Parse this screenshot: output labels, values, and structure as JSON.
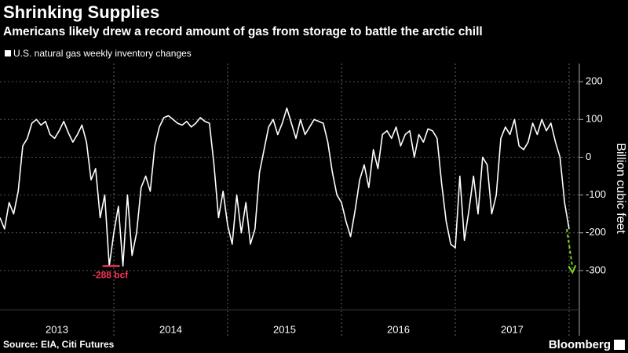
{
  "chart_data": {
    "type": "line",
    "title": "Shrinking Supplies",
    "subtitle": "Americans likely drew a record amount of gas from storage to battle the arctic chill",
    "y_label": "Billion cubic feet",
    "source": "Source: EIA, Citi Futures",
    "brand": "Bloomberg",
    "categories": [
      "2013",
      "2014",
      "2015",
      "2016",
      "2017"
    ],
    "x": [
      2013,
      2013.04,
      2013.08,
      2013.12,
      2013.16,
      2013.2,
      2013.24,
      2013.28,
      2013.32,
      2013.36,
      2013.4,
      2013.44,
      2013.48,
      2013.52,
      2013.56,
      2013.6,
      2013.64,
      2013.68,
      2013.72,
      2013.76,
      2013.8,
      2013.84,
      2013.88,
      2013.92,
      2013.96,
      2014,
      2014.04,
      2014.08,
      2014.12,
      2014.16,
      2014.2,
      2014.24,
      2014.28,
      2014.32,
      2014.36,
      2014.4,
      2014.44,
      2014.48,
      2014.52,
      2014.56,
      2014.6,
      2014.64,
      2014.68,
      2014.72,
      2014.76,
      2014.8,
      2014.84,
      2014.88,
      2014.92,
      2014.96,
      2015,
      2015.04,
      2015.08,
      2015.12,
      2015.16,
      2015.2,
      2015.24,
      2015.28,
      2015.32,
      2015.36,
      2015.4,
      2015.44,
      2015.48,
      2015.52,
      2015.56,
      2015.6,
      2015.64,
      2015.68,
      2015.72,
      2015.76,
      2015.8,
      2015.84,
      2015.88,
      2015.92,
      2015.96,
      2016,
      2016.04,
      2016.08,
      2016.12,
      2016.16,
      2016.2,
      2016.24,
      2016.28,
      2016.32,
      2016.36,
      2016.4,
      2016.44,
      2016.48,
      2016.52,
      2016.56,
      2016.6,
      2016.64,
      2016.68,
      2016.72,
      2016.76,
      2016.8,
      2016.84,
      2016.88,
      2016.92,
      2016.96,
      2017,
      2017.04,
      2017.08,
      2017.12,
      2017.16,
      2017.2,
      2017.24,
      2017.28,
      2017.32,
      2017.36,
      2017.4,
      2017.44,
      2017.48,
      2017.52,
      2017.56,
      2017.6,
      2017.64,
      2017.68,
      2017.72,
      2017.76,
      2017.8,
      2017.84,
      2017.88,
      2017.92,
      2017.96,
      2018
    ],
    "series": [
      {
        "name": "U.S. natural gas weekly inventory changes",
        "color": "#ffffff",
        "values": [
          -160,
          -190,
          -120,
          -150,
          -90,
          30,
          50,
          90,
          100,
          85,
          95,
          60,
          50,
          70,
          95,
          65,
          40,
          60,
          85,
          40,
          -60,
          -30,
          -160,
          -100,
          -288,
          -200,
          -130,
          -288,
          -100,
          -260,
          -200,
          -80,
          -50,
          -90,
          30,
          80,
          105,
          110,
          100,
          90,
          85,
          95,
          80,
          90,
          105,
          95,
          90,
          -20,
          -160,
          -90,
          -180,
          -230,
          -100,
          -200,
          -120,
          -230,
          -190,
          -40,
          20,
          80,
          100,
          60,
          90,
          130,
          90,
          50,
          100,
          60,
          80,
          100,
          95,
          90,
          40,
          -40,
          -100,
          -120,
          -170,
          -210,
          -140,
          -60,
          -20,
          -80,
          20,
          -30,
          60,
          70,
          50,
          80,
          30,
          60,
          70,
          0,
          60,
          40,
          75,
          70,
          50,
          -70,
          -170,
          -230,
          -240,
          -50,
          -220,
          -140,
          -50,
          -150,
          0,
          -20,
          -150,
          -100,
          50,
          80,
          60,
          100,
          30,
          20,
          40,
          90,
          60,
          100,
          70,
          90,
          40,
          0,
          -120,
          -190
        ]
      }
    ],
    "projection": {
      "x": [
        2017.98,
        2018.03
      ],
      "values": [
        -190,
        -305
      ],
      "color": "#7ed321"
    },
    "annotation": {
      "text": "-288 bcf",
      "x": 2013.97,
      "value": -288,
      "color": "#ff3355"
    },
    "xlim": [
      2013,
      2018.09
    ],
    "xticks": [
      2014,
      2015,
      2016,
      2017,
      2018
    ],
    "ylim": [
      -404,
      248
    ],
    "yticks": [
      -300,
      -200,
      -100,
      0,
      100,
      200
    ],
    "grid": true
  }
}
